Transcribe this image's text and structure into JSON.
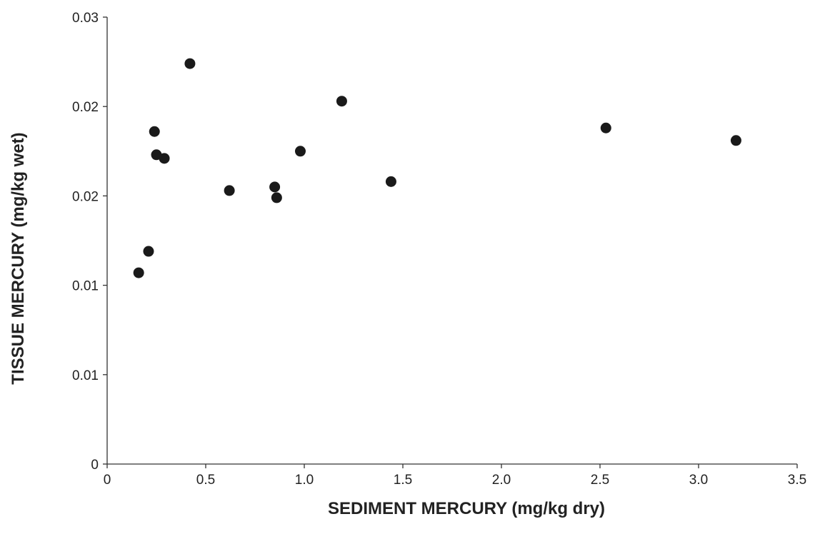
{
  "chart_data": {
    "type": "scatter",
    "title": "",
    "xlabel": "SEDIMENT MERCURY (mg/kg dry)",
    "ylabel": "TISSUE MERCURY (mg/kg wet)",
    "xlim": [
      0,
      3.5
    ],
    "ylim": [
      0,
      0.025
    ],
    "x_ticks": [
      0,
      0.5,
      1.0,
      1.5,
      2.0,
      2.5,
      3.0,
      3.5
    ],
    "x_tick_labels": [
      "0",
      "0.5",
      "1.0",
      "1.5",
      "2.0",
      "2.5",
      "3.0",
      "3.5"
    ],
    "y_ticks": [
      0,
      0.005,
      0.01,
      0.015,
      0.02,
      0.025
    ],
    "y_tick_labels": [
      "0",
      "0.01",
      "0.01",
      "0.02",
      "0.02",
      "0.03"
    ],
    "grid": false,
    "legend": "none",
    "marker_color": "#1a1a1a",
    "axis_color": "#333333",
    "series": [
      {
        "x": [
          0.16,
          0.21,
          0.24,
          0.25,
          0.29,
          0.42,
          0.62,
          0.85,
          0.86,
          0.98,
          1.19,
          1.44,
          2.53,
          3.19
        ],
        "y": [
          0.0107,
          0.0119,
          0.0186,
          0.0173,
          0.0171,
          0.0224,
          0.0153,
          0.0155,
          0.0149,
          0.0175,
          0.0203,
          0.0158,
          0.0188,
          0.0181
        ]
      }
    ]
  }
}
